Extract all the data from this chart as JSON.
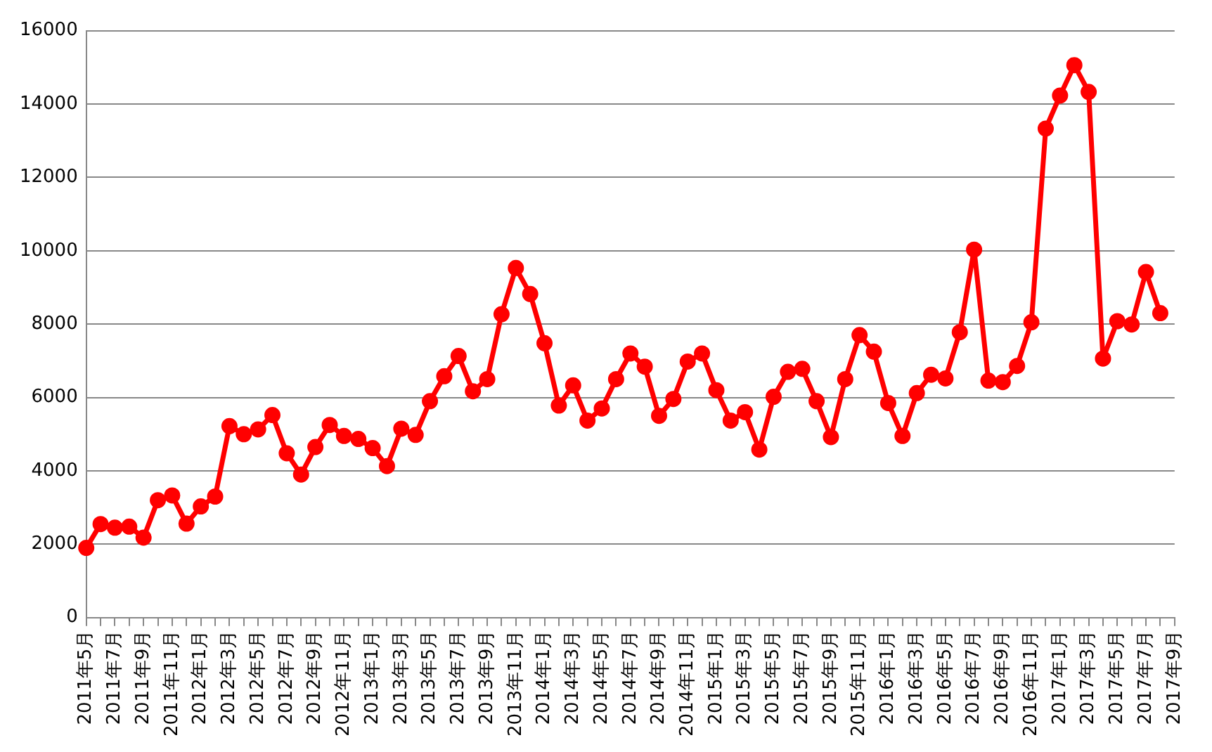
{
  "chart_data": {
    "type": "line",
    "categories": [
      "2011年5月",
      null,
      "2011年7月",
      null,
      "2011年9月",
      null,
      "2011年11月",
      null,
      "2012年1月",
      null,
      "2012年3月",
      null,
      "2012年5月",
      null,
      "2012年7月",
      null,
      "2012年9月",
      null,
      "2012年11月",
      null,
      "2013年1月",
      null,
      "2013年3月",
      null,
      "2013年5月",
      null,
      "2013年7月",
      null,
      "2013年9月",
      null,
      "2013年11月",
      null,
      "2014年1月",
      null,
      "2014年3月",
      null,
      "2014年5月",
      null,
      "2014年7月",
      null,
      "2014年9月",
      null,
      "2014年11月",
      null,
      "2015年1月",
      null,
      "2015年3月",
      null,
      "2015年5月",
      null,
      "2015年7月",
      null,
      "2015年9月",
      null,
      "2015年11月",
      null,
      "2016年1月",
      null,
      "2016年3月",
      null,
      "2016年5月",
      null,
      "2016年7月",
      null,
      "2016年9月",
      null,
      "2016年11月",
      null,
      "2017年1月",
      null,
      "2017年3月",
      null,
      "2017年5月",
      null,
      "2017年7月",
      null,
      "2017年9月"
    ],
    "series": [
      {
        "color": "#ff0000",
        "values": [
          1900,
          2550,
          2450,
          2480,
          2180,
          3200,
          3330,
          2560,
          3030,
          3300,
          5220,
          5000,
          5130,
          5520,
          4480,
          3900,
          4650,
          5250,
          4950,
          4870,
          4620,
          4130,
          5150,
          4980,
          5900,
          6580,
          7130,
          6170,
          6500,
          8270,
          9530,
          8820,
          7480,
          5780,
          6330,
          5370,
          5700,
          6500,
          7200,
          6840,
          5500,
          5960,
          6980,
          7200,
          6200,
          5370,
          5600,
          4580,
          6020,
          6700,
          6780,
          5900,
          4920,
          6500,
          7700,
          7250,
          5850,
          4950,
          6120,
          6620,
          6520,
          7780,
          10030,
          6460,
          6420,
          6860,
          8050,
          13330,
          14230,
          15060,
          14330,
          7060,
          8080,
          7990,
          9420,
          8300,
          null
        ]
      }
    ],
    "ylim": [
      0,
      16000
    ],
    "yticks": [
      0,
      2000,
      4000,
      6000,
      8000,
      10000,
      12000,
      14000,
      16000
    ],
    "grid": "y",
    "legend": false,
    "marker": "circle",
    "line_style": "solid"
  }
}
